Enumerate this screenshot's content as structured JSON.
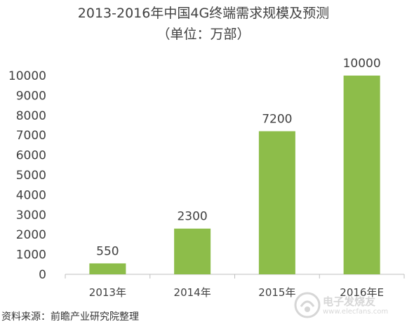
{
  "chart_data": {
    "type": "bar",
    "title": "2013-2016年中国4G终端需求规模及预测",
    "subtitle": "（单位：万部）",
    "categories": [
      "2013年",
      "2014年",
      "2015年",
      "2016年E"
    ],
    "values": [
      550,
      2300,
      7200,
      10000
    ],
    "data_labels": [
      "550",
      "2300",
      "7200",
      "10000"
    ],
    "yticks": [
      "0",
      "1000",
      "2000",
      "3000",
      "4000",
      "5000",
      "6000",
      "7000",
      "8000",
      "9000",
      "10000"
    ],
    "ylim": [
      0,
      10000
    ],
    "grid": false,
    "legend": "none",
    "bar_color": "#8dbd4a",
    "axis_color": "#bfbfbf",
    "text_color": "#404040"
  },
  "source": "资料来源：前瞻产业研究院整理",
  "watermark": {
    "text": "电子发烧友",
    "url": "www.elecfans.com"
  }
}
